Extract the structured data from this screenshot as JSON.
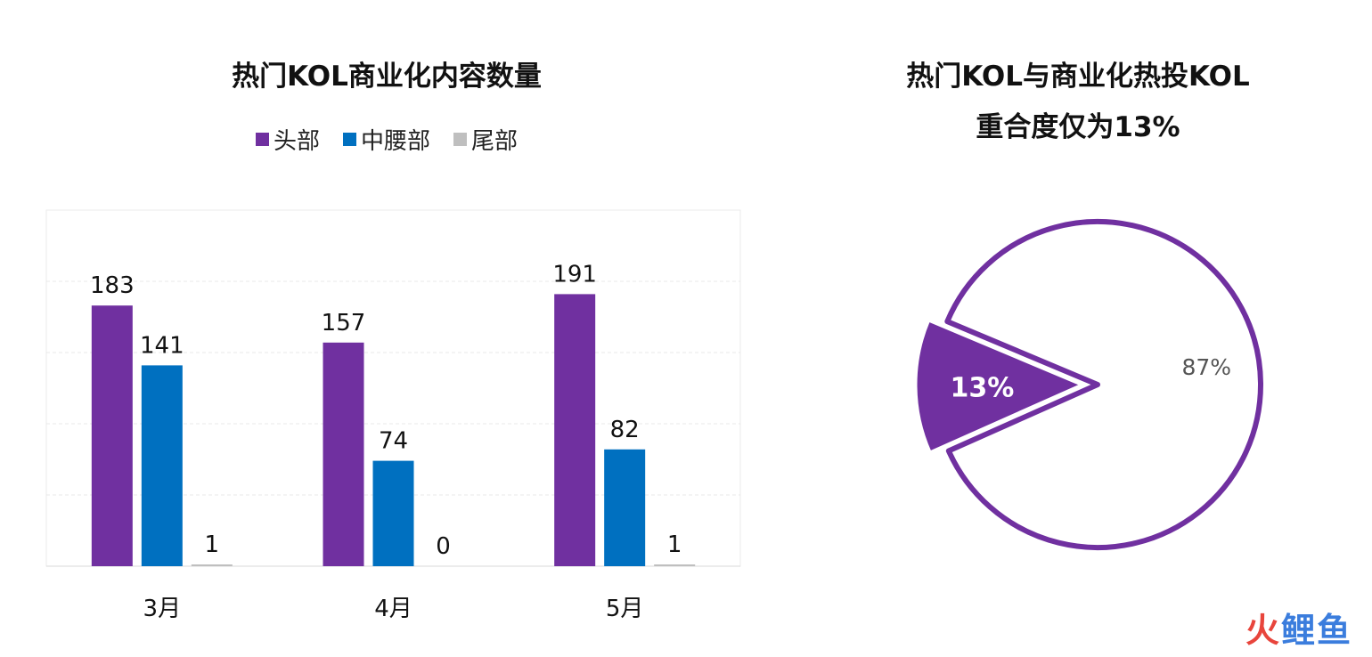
{
  "chart_data": [
    {
      "type": "bar",
      "title": "热门KOL商业化内容数量",
      "categories": [
        "3月",
        "4月",
        "5月"
      ],
      "series": [
        {
          "name": "头部",
          "color": "#7030a0",
          "values": [
            183,
            157,
            191
          ]
        },
        {
          "name": "中腰部",
          "color": "#0070c0",
          "values": [
            141,
            74,
            82
          ]
        },
        {
          "name": "尾部",
          "color": "#bfbfbf",
          "values": [
            1,
            0,
            1
          ]
        }
      ],
      "ylim": [
        0,
        250
      ],
      "grid": true,
      "legend_position": "top",
      "xlabel": "",
      "ylabel": ""
    },
    {
      "type": "pie",
      "title_line1": "热门KOL与商业化热投KOL",
      "title_line2": "重合度仅为13%",
      "slices": [
        {
          "label": "13%",
          "value": 13,
          "color": "#7030a0",
          "exploded": true
        },
        {
          "label": "87%",
          "value": 87,
          "color": "#ffffff",
          "outline": "#7030a0"
        }
      ]
    }
  ],
  "watermark": {
    "part1": "火",
    "part2": "鲤",
    "part3": "鱼"
  }
}
